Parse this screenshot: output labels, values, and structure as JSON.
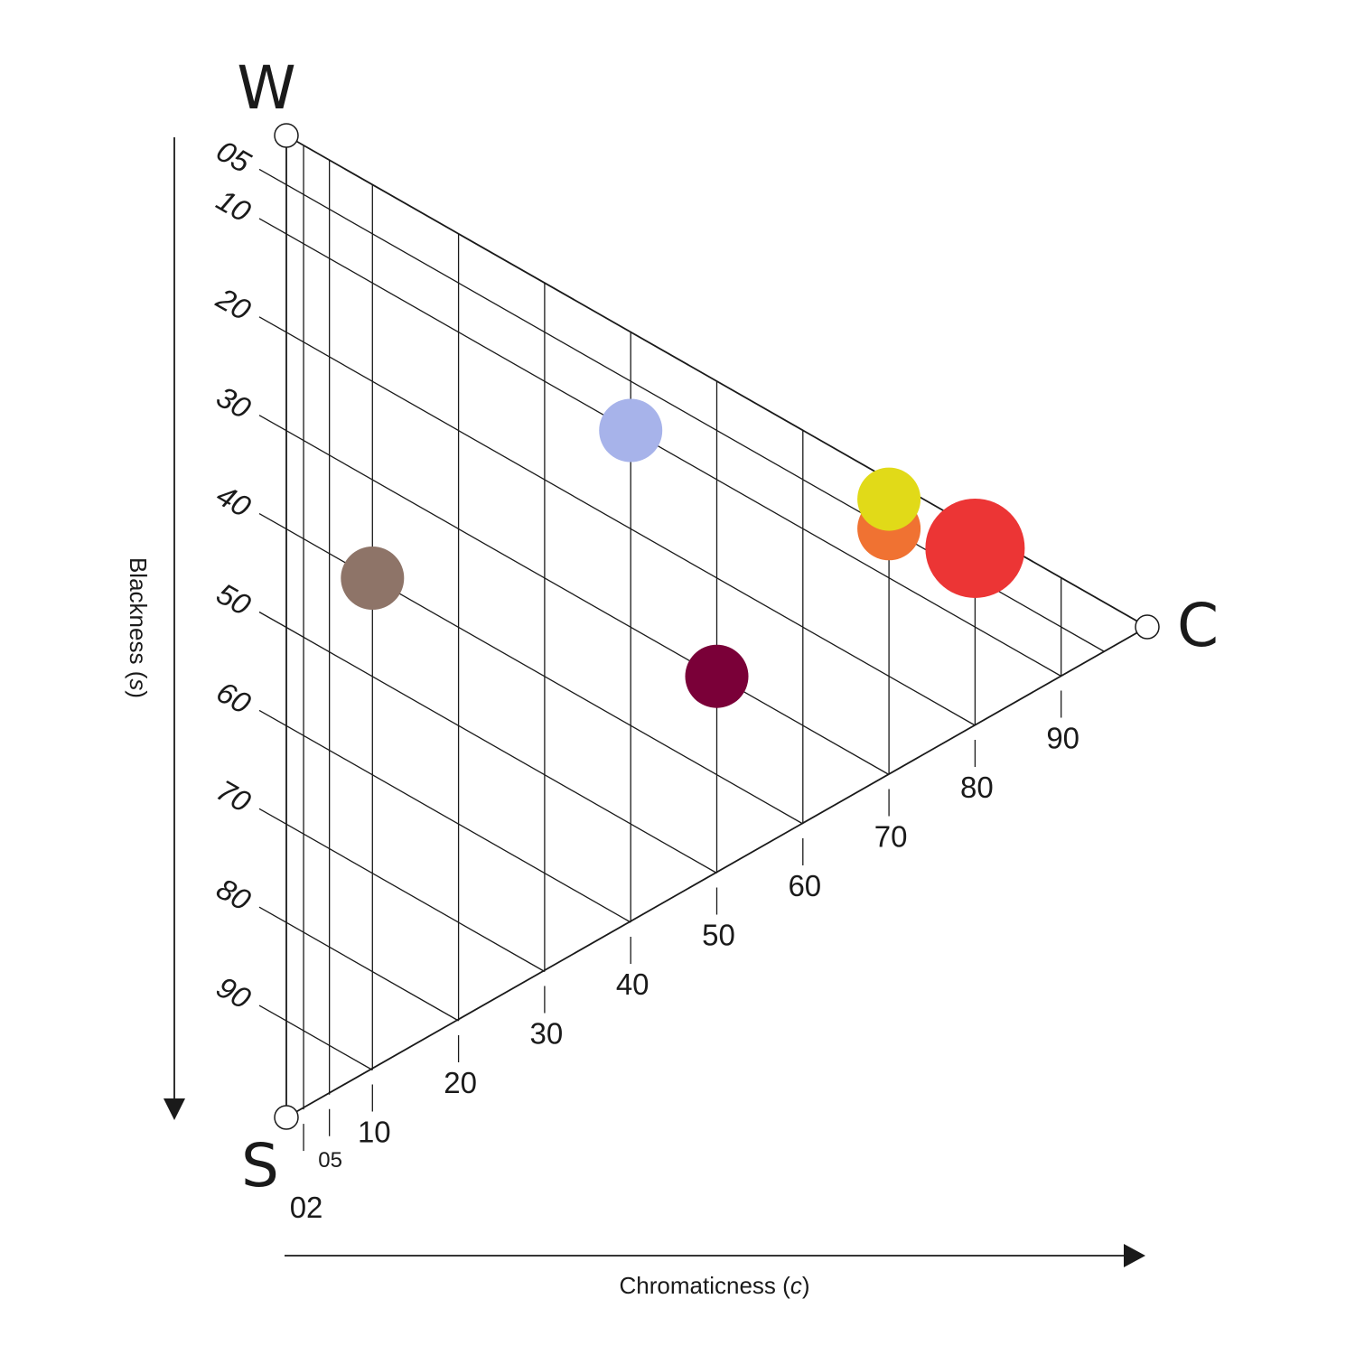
{
  "chart_data": {
    "type": "scatter",
    "title": "",
    "corners": {
      "white": "W",
      "black": "S",
      "chromatic": "C"
    },
    "xlabel": "Chromaticness",
    "xlabel_symbol": "c",
    "ylabel": "Blackness",
    "ylabel_symbol": "s",
    "chromaticness_ticks": [
      "02",
      "05",
      "10",
      "20",
      "30",
      "40",
      "50",
      "60",
      "70",
      "80",
      "90"
    ],
    "blackness_ticks": [
      "05",
      "10",
      "20",
      "30",
      "40",
      "50",
      "60",
      "70",
      "80",
      "90"
    ],
    "xlim": [
      0,
      100
    ],
    "ylim": [
      0,
      100
    ],
    "points": [
      {
        "chromaticness": 40,
        "blackness": 10,
        "color": "#a7b3ea",
        "size": "medium"
      },
      {
        "chromaticness": 10,
        "blackness": 40,
        "color": "#8e7468",
        "size": "medium"
      },
      {
        "chromaticness": 50,
        "blackness": 30,
        "color": "#7a0038",
        "size": "medium"
      },
      {
        "chromaticness": 70,
        "blackness": 5,
        "color": "#f07232",
        "size": "medium"
      },
      {
        "chromaticness": 70,
        "blackness": 2,
        "color": "#e1da18",
        "size": "medium"
      },
      {
        "chromaticness": 80,
        "blackness": 2,
        "color": "#ec3535",
        "size": "large"
      }
    ]
  }
}
